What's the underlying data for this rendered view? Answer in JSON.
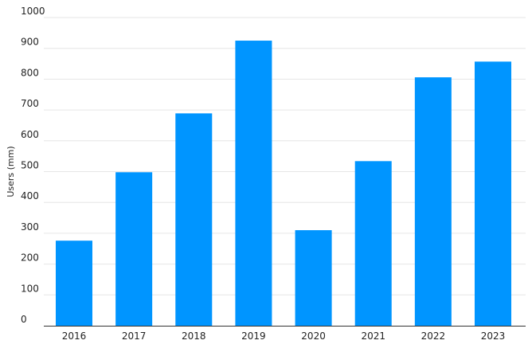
{
  "chart_data": {
    "type": "bar",
    "title": "",
    "xlabel": "",
    "ylabel": "Users (mm)",
    "categories": [
      "2016",
      "2017",
      "2018",
      "2019",
      "2020",
      "2021",
      "2022",
      "2023"
    ],
    "series": [
      {
        "values": [
          276,
          498,
          689,
          925,
          310,
          534,
          806,
          857
        ]
      }
    ],
    "ylim": [
      0,
      1000
    ],
    "yticks": [
      0,
      100,
      200,
      300,
      400,
      500,
      600,
      700,
      800,
      900,
      1000
    ],
    "grid": true,
    "legend": "none",
    "bar_color": "#0095FF"
  }
}
